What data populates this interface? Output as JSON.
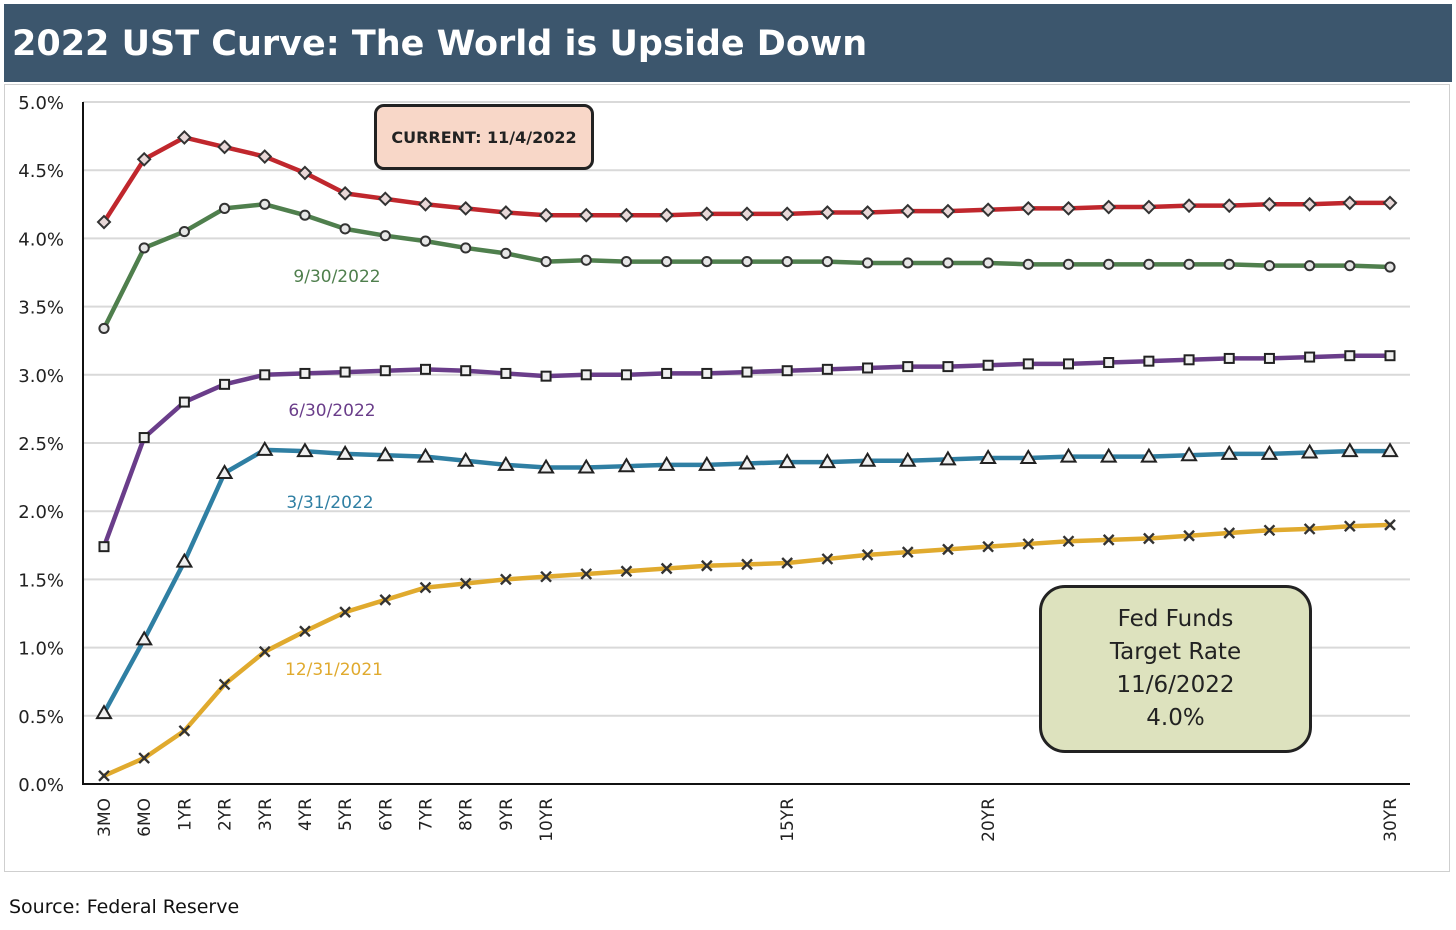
{
  "header": {
    "title": "2022 UST Curve: The World is Upside Down"
  },
  "source": "Source: Federal Reserve",
  "callouts": {
    "current": "CURRENT: 11/4/2022",
    "fed_funds": [
      "Fed Funds",
      "Target Rate",
      "11/6/2022",
      "4.0%"
    ]
  },
  "chart_data": {
    "type": "line",
    "title": "2022 UST Curve: The World is Upside Down",
    "xlabel": "",
    "ylabel": "",
    "ylim": [
      0,
      5
    ],
    "y_ticks": [
      "0.0%",
      "0.5%",
      "1.0%",
      "1.5%",
      "2.0%",
      "2.5%",
      "3.0%",
      "3.5%",
      "4.0%",
      "4.5%",
      "5.0%"
    ],
    "x_labels": [
      "3MO",
      "6MO",
      "1YR",
      "2YR",
      "3YR",
      "4YR",
      "5YR",
      "6YR",
      "7YR",
      "8YR",
      "9YR",
      "10YR",
      "",
      "",
      "",
      "",
      "",
      "15YR",
      "",
      "",
      "",
      "",
      "20YR",
      "",
      "",
      "",
      "",
      "",
      "",
      "",
      "",
      "",
      "30YR"
    ],
    "grid": true,
    "series": [
      {
        "name": "CURRENT: 11/4/2022",
        "label": "",
        "color": "#c0272d",
        "marker": "diamond",
        "values": [
          4.12,
          4.58,
          4.74,
          4.67,
          4.6,
          4.48,
          4.33,
          4.29,
          4.25,
          4.22,
          4.19,
          4.17,
          4.17,
          4.17,
          4.17,
          4.18,
          4.18,
          4.18,
          4.19,
          4.19,
          4.2,
          4.2,
          4.21,
          4.22,
          4.22,
          4.23,
          4.23,
          4.24,
          4.24,
          4.25,
          4.25,
          4.26,
          4.26
        ]
      },
      {
        "name": "9/30/2022",
        "label": "9/30/2022",
        "color": "#4f7f4d",
        "marker": "circle",
        "values": [
          3.34,
          3.93,
          4.05,
          4.22,
          4.25,
          4.17,
          4.07,
          4.02,
          3.98,
          3.93,
          3.89,
          3.83,
          3.84,
          3.83,
          3.83,
          3.83,
          3.83,
          3.83,
          3.83,
          3.82,
          3.82,
          3.82,
          3.82,
          3.81,
          3.81,
          3.81,
          3.81,
          3.81,
          3.81,
          3.8,
          3.8,
          3.8,
          3.79
        ]
      },
      {
        "name": "6/30/2022",
        "label": "6/30/2022",
        "color": "#6a3d8a",
        "marker": "square",
        "values": [
          1.74,
          2.54,
          2.8,
          2.93,
          3.0,
          3.01,
          3.02,
          3.03,
          3.04,
          3.03,
          3.01,
          2.99,
          3.0,
          3.0,
          3.01,
          3.01,
          3.02,
          3.03,
          3.04,
          3.05,
          3.06,
          3.06,
          3.07,
          3.08,
          3.08,
          3.09,
          3.1,
          3.11,
          3.12,
          3.12,
          3.13,
          3.14,
          3.14
        ]
      },
      {
        "name": "3/31/2022",
        "label": "3/31/2022",
        "color": "#2f7fa3",
        "marker": "triangle",
        "values": [
          0.52,
          1.06,
          1.63,
          2.28,
          2.45,
          2.44,
          2.42,
          2.41,
          2.4,
          2.37,
          2.34,
          2.32,
          2.32,
          2.33,
          2.34,
          2.34,
          2.35,
          2.36,
          2.36,
          2.37,
          2.37,
          2.38,
          2.39,
          2.39,
          2.4,
          2.4,
          2.4,
          2.41,
          2.42,
          2.42,
          2.43,
          2.44,
          2.44
        ]
      },
      {
        "name": "12/31/2021",
        "label": "12/31/2021",
        "color": "#e0aa2e",
        "marker": "x",
        "values": [
          0.06,
          0.19,
          0.39,
          0.73,
          0.97,
          1.12,
          1.26,
          1.35,
          1.44,
          1.47,
          1.5,
          1.52,
          1.54,
          1.56,
          1.58,
          1.6,
          1.61,
          1.62,
          1.65,
          1.68,
          1.7,
          1.72,
          1.74,
          1.76,
          1.78,
          1.79,
          1.8,
          1.82,
          1.84,
          1.86,
          1.87,
          1.89,
          1.9
        ]
      }
    ]
  }
}
